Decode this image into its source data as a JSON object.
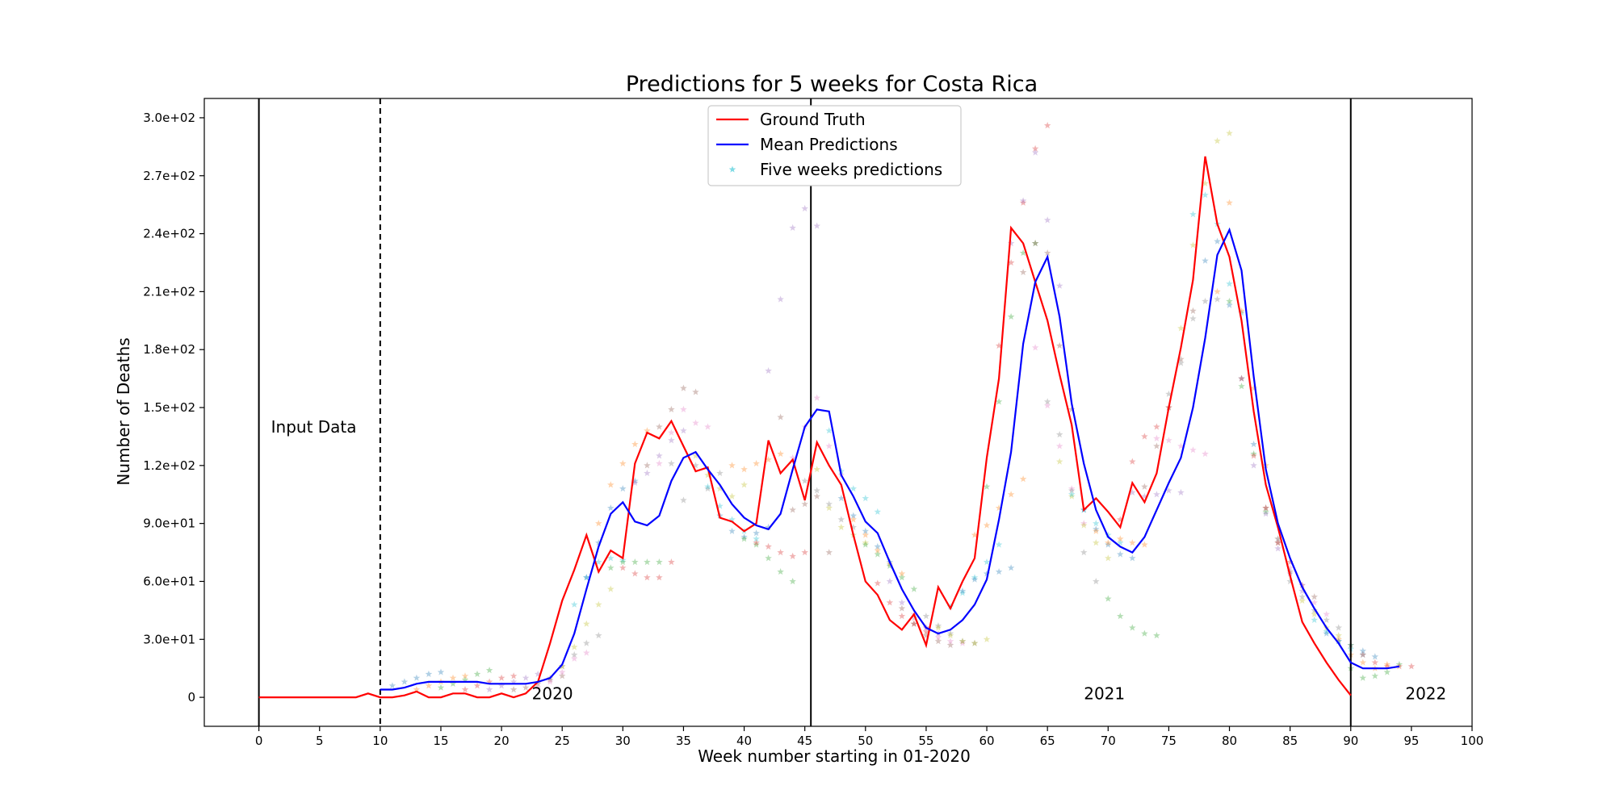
{
  "chart_data": {
    "type": "line",
    "title": "Predictions for 5 weeks for Costa Rica",
    "xlabel": "Week number starting in 01-2020",
    "ylabel": "Number of Deaths",
    "xlim": [
      -4.5,
      100
    ],
    "ylim": [
      -15,
      310
    ],
    "x_ticks": [
      0,
      5,
      10,
      15,
      20,
      25,
      30,
      35,
      40,
      45,
      50,
      55,
      60,
      65,
      70,
      75,
      80,
      85,
      90,
      95,
      100
    ],
    "y_ticks": [
      0,
      30,
      60,
      90,
      120,
      150,
      180,
      210,
      240,
      270,
      300
    ],
    "y_tick_labels": [
      "0",
      "3.0e+01",
      "6.0e+01",
      "9.0e+01",
      "1.2e+02",
      "1.5e+02",
      "1.8e+02",
      "2.1e+02",
      "2.4e+02",
      "2.7e+02",
      "3.0e+02"
    ],
    "grid": false,
    "legend": {
      "placement": "top-center",
      "entries": [
        "Ground Truth",
        "Mean Predictions",
        "Five weeks predictions"
      ]
    },
    "colors": {
      "ground_truth": "#ff0000",
      "mean_predictions": "#0000ff",
      "star_palette": [
        "#1f77b4",
        "#ff7f0e",
        "#2ca02c",
        "#d62728",
        "#9467bd",
        "#8c564b",
        "#e377c2",
        "#7f7f7f",
        "#bcbd22",
        "#17becf"
      ]
    },
    "vertical_lines": [
      {
        "x": 0,
        "style": "solid"
      },
      {
        "x": 10,
        "style": "dashed"
      },
      {
        "x": 45.5,
        "style": "solid"
      },
      {
        "x": 90,
        "style": "solid"
      }
    ],
    "annotations": [
      {
        "text": "Input Data",
        "x": 1,
        "y": 140
      },
      {
        "text": "2020",
        "x": 22.5,
        "y": 2
      },
      {
        "text": "2021",
        "x": 68,
        "y": 2
      },
      {
        "text": "2022",
        "x": 94.5,
        "y": 2
      }
    ],
    "series": [
      {
        "name": "Ground Truth",
        "x": [
          0,
          1,
          2,
          3,
          4,
          5,
          6,
          7,
          8,
          9,
          10,
          11,
          12,
          13,
          14,
          15,
          16,
          17,
          18,
          19,
          20,
          21,
          22,
          23,
          24,
          25,
          26,
          27,
          28,
          29,
          30,
          31,
          32,
          33,
          34,
          35,
          36,
          37,
          38,
          39,
          40,
          41,
          42,
          43,
          44,
          45,
          46,
          47,
          48,
          49,
          50,
          51,
          52,
          53,
          54,
          55,
          56,
          57,
          58,
          59,
          60,
          61,
          62,
          63,
          64,
          65,
          66,
          67,
          68,
          69,
          70,
          71,
          72,
          73,
          74,
          75,
          76,
          77,
          78,
          79,
          80,
          81,
          82,
          83,
          84,
          85,
          86,
          87,
          88,
          89,
          90
        ],
        "y": [
          0,
          0,
          0,
          0,
          0,
          0,
          0,
          0,
          0,
          2,
          0,
          0,
          1,
          3,
          0,
          0,
          2,
          2,
          0,
          0,
          2,
          0,
          2,
          8,
          28,
          50,
          66,
          84,
          65,
          76,
          72,
          121,
          137,
          134,
          143,
          130,
          117,
          119,
          93,
          91,
          86,
          90,
          133,
          116,
          123,
          102,
          132,
          120,
          110,
          84,
          60,
          53,
          40,
          35,
          43,
          27,
          57,
          46,
          60,
          72,
          124,
          165,
          243,
          235,
          215,
          195,
          167,
          141,
          97,
          103,
          96,
          88,
          111,
          101,
          116,
          150,
          181,
          216,
          280,
          245,
          228,
          195,
          148,
          110,
          88,
          63,
          39,
          28,
          18,
          9,
          1
        ]
      },
      {
        "name": "Mean Predictions",
        "x": [
          10,
          11,
          12,
          13,
          14,
          15,
          16,
          17,
          18,
          19,
          20,
          21,
          22,
          23,
          24,
          25,
          26,
          27,
          28,
          29,
          30,
          31,
          32,
          33,
          34,
          35,
          36,
          37,
          38,
          39,
          40,
          41,
          42,
          43,
          44,
          45,
          46,
          47,
          48,
          49,
          50,
          51,
          52,
          53,
          54,
          55,
          56,
          57,
          58,
          59,
          60,
          61,
          62,
          63,
          64,
          65,
          66,
          67,
          68,
          69,
          70,
          71,
          72,
          73,
          74,
          75,
          76,
          77,
          78,
          79,
          80,
          81,
          82,
          83,
          84,
          85,
          86,
          87,
          88,
          89,
          90,
          91,
          92,
          93,
          94
        ],
        "y": [
          4,
          4,
          5,
          7,
          8,
          8,
          8,
          8,
          8,
          7,
          7,
          7,
          7,
          8,
          10,
          17,
          33,
          56,
          78,
          95,
          101,
          91,
          89,
          94,
          112,
          124,
          127,
          118,
          110,
          100,
          93,
          89,
          87,
          95,
          118,
          140,
          149,
          148,
          115,
          104,
          91,
          85,
          70,
          56,
          45,
          36,
          33,
          35,
          40,
          48,
          61,
          92,
          127,
          183,
          215,
          228,
          197,
          152,
          121,
          97,
          83,
          78,
          75,
          83,
          97,
          111,
          124,
          150,
          186,
          229,
          242,
          221,
          166,
          118,
          90,
          72,
          57,
          46,
          36,
          28,
          18,
          15,
          15,
          15,
          16
        ]
      }
    ],
    "five_week_predictions": {
      "marker": "star",
      "alpha": 0.35,
      "forecasts": [
        {
          "start": 11,
          "values": [
            6,
            8,
            10,
            12,
            13
          ]
        },
        {
          "start": 13,
          "values": [
            4,
            6,
            8,
            10,
            11
          ]
        },
        {
          "start": 15,
          "values": [
            5,
            7,
            9,
            12,
            14
          ]
        },
        {
          "start": 17,
          "values": [
            4,
            6,
            8,
            10,
            11
          ]
        },
        {
          "start": 19,
          "values": [
            4,
            6,
            8,
            10,
            12
          ]
        },
        {
          "start": 21,
          "values": [
            4,
            5,
            7,
            9,
            11
          ]
        },
        {
          "start": 23,
          "values": [
            5,
            8,
            13,
            20,
            23
          ]
        },
        {
          "start": 24,
          "values": [
            10,
            16,
            22,
            28,
            32
          ]
        },
        {
          "start": 25,
          "values": [
            16,
            26,
            38,
            48,
            56
          ]
        },
        {
          "start": 26,
          "values": [
            48,
            62,
            70,
            72,
            71
          ]
        },
        {
          "start": 27,
          "values": [
            62,
            80,
            98,
            108,
            112
          ]
        },
        {
          "start": 28,
          "values": [
            90,
            110,
            121,
            131,
            138
          ]
        },
        {
          "start": 29,
          "values": [
            67,
            70,
            70,
            70,
            70
          ]
        },
        {
          "start": 30,
          "values": [
            67,
            64,
            62,
            62,
            70
          ]
        },
        {
          "start": 31,
          "values": [
            111,
            116,
            125,
            133,
            138
          ]
        },
        {
          "start": 32,
          "values": [
            120,
            140,
            149,
            160,
            158
          ]
        },
        {
          "start": 33,
          "values": [
            121,
            137,
            149,
            142,
            140
          ]
        },
        {
          "start": 34,
          "values": [
            121,
            102,
            120,
            108,
            116
          ]
        },
        {
          "start": 36,
          "values": [
            125,
            115,
            108,
            104,
            110
          ]
        },
        {
          "start": 37,
          "values": [
            109,
            99,
            92,
            86,
            82
          ]
        },
        {
          "start": 38,
          "values": [
            94,
            86,
            83,
            85,
            88
          ]
        },
        {
          "start": 39,
          "values": [
            120,
            118,
            121,
            123,
            126
          ]
        },
        {
          "start": 40,
          "values": [
            82,
            79,
            72,
            65,
            60
          ]
        },
        {
          "start": 41,
          "values": [
            80,
            78,
            75,
            73,
            75
          ]
        },
        {
          "start": 42,
          "values": [
            169,
            206,
            243,
            253,
            244
          ]
        },
        {
          "start": 43,
          "values": [
            145,
            97,
            100,
            104,
            75
          ]
        },
        {
          "start": 44,
          "values": [
            124,
            140,
            155,
            130,
            115
          ]
        },
        {
          "start": 45,
          "values": [
            112,
            107,
            100,
            92,
            88
          ]
        },
        {
          "start": 46,
          "values": [
            118,
            98,
            88,
            84,
            80
          ]
        },
        {
          "start": 47,
          "values": [
            138,
            117,
            108,
            103,
            96
          ]
        },
        {
          "start": 48,
          "values": [
            103,
            94,
            86,
            78,
            70
          ]
        },
        {
          "start": 49,
          "values": [
            92,
            84,
            76,
            69,
            64
          ]
        },
        {
          "start": 50,
          "values": [
            79,
            74,
            68,
            62,
            56
          ]
        },
        {
          "start": 51,
          "values": [
            59,
            49,
            42,
            38,
            34
          ]
        },
        {
          "start": 52,
          "values": [
            60,
            49,
            41,
            36,
            33
          ]
        },
        {
          "start": 53,
          "values": [
            46,
            38,
            32,
            29,
            27
          ]
        },
        {
          "start": 54,
          "values": [
            43,
            36,
            31,
            29,
            28
          ]
        },
        {
          "start": 55,
          "values": [
            42,
            37,
            33,
            29,
            28
          ]
        },
        {
          "start": 56,
          "values": [
            36,
            32,
            29,
            28,
            30
          ]
        },
        {
          "start": 57,
          "values": [
            47,
            54,
            62,
            70,
            79
          ]
        },
        {
          "start": 58,
          "values": [
            55,
            61,
            64,
            65,
            67
          ]
        },
        {
          "start": 59,
          "values": [
            84,
            89,
            98,
            105,
            113
          ]
        },
        {
          "start": 60,
          "values": [
            109,
            153,
            197,
            230,
            235
          ]
        },
        {
          "start": 61,
          "values": [
            182,
            225,
            256,
            284,
            296
          ]
        },
        {
          "start": 62,
          "values": [
            235,
            257,
            282,
            247,
            213
          ]
        },
        {
          "start": 63,
          "values": [
            220,
            235,
            230,
            182,
            149
          ]
        },
        {
          "start": 64,
          "values": [
            181,
            151,
            130,
            108,
            90
          ]
        },
        {
          "start": 65,
          "values": [
            153,
            136,
            107,
            75,
            60
          ]
        },
        {
          "start": 66,
          "values": [
            122,
            104,
            89,
            80,
            72
          ]
        },
        {
          "start": 67,
          "values": [
            105,
            97,
            90,
            84,
            80
          ]
        },
        {
          "start": 68,
          "values": [
            97,
            87,
            79,
            74,
            72
          ]
        },
        {
          "start": 69,
          "values": [
            86,
            80,
            82,
            80,
            79
          ]
        },
        {
          "start": 70,
          "values": [
            51,
            42,
            36,
            33,
            32
          ]
        },
        {
          "start": 71,
          "values": [
            92,
            122,
            135,
            140,
            150
          ]
        },
        {
          "start": 72,
          "values": [
            106,
            104,
            105,
            107,
            106
          ]
        },
        {
          "start": 73,
          "values": [
            109,
            130,
            150,
            175,
            200
          ]
        },
        {
          "start": 74,
          "values": [
            134,
            133,
            130,
            128,
            126
          ]
        },
        {
          "start": 75,
          "values": [
            157,
            173,
            196,
            205,
            206
          ]
        },
        {
          "start": 76,
          "values": [
            191,
            234,
            266,
            288,
            292
          ]
        },
        {
          "start": 77,
          "values": [
            250,
            260,
            245,
            214,
            199
          ]
        },
        {
          "start": 78,
          "values": [
            226,
            236,
            203,
            165,
            131
          ]
        },
        {
          "start": 79,
          "values": [
            210,
            256,
            200,
            160,
            120
          ]
        },
        {
          "start": 80,
          "values": [
            205,
            161,
            126,
            96,
            82
          ]
        },
        {
          "start": 81,
          "values": [
            165,
            125,
            98,
            80,
            70
          ]
        },
        {
          "start": 82,
          "values": [
            120,
            95,
            77,
            64,
            55
          ]
        },
        {
          "start": 83,
          "values": [
            98,
            80,
            65,
            58,
            52
          ]
        },
        {
          "start": 84,
          "values": [
            82,
            67,
            58,
            49,
            43
          ]
        },
        {
          "start": 85,
          "values": [
            60,
            52,
            45,
            40,
            36
          ]
        },
        {
          "start": 86,
          "values": [
            50,
            43,
            36,
            32,
            27
          ]
        },
        {
          "start": 87,
          "values": [
            40,
            34,
            29,
            25,
            22
          ]
        },
        {
          "start": 88,
          "values": [
            33,
            29,
            27,
            24,
            21
          ]
        },
        {
          "start": 89,
          "values": [
            30,
            22,
            18,
            15,
            17
          ]
        },
        {
          "start": 90,
          "values": [
            15,
            10,
            11,
            13,
            17
          ]
        },
        {
          "start": 91,
          "values": [
            22,
            18,
            16,
            16,
            16
          ]
        }
      ]
    }
  }
}
